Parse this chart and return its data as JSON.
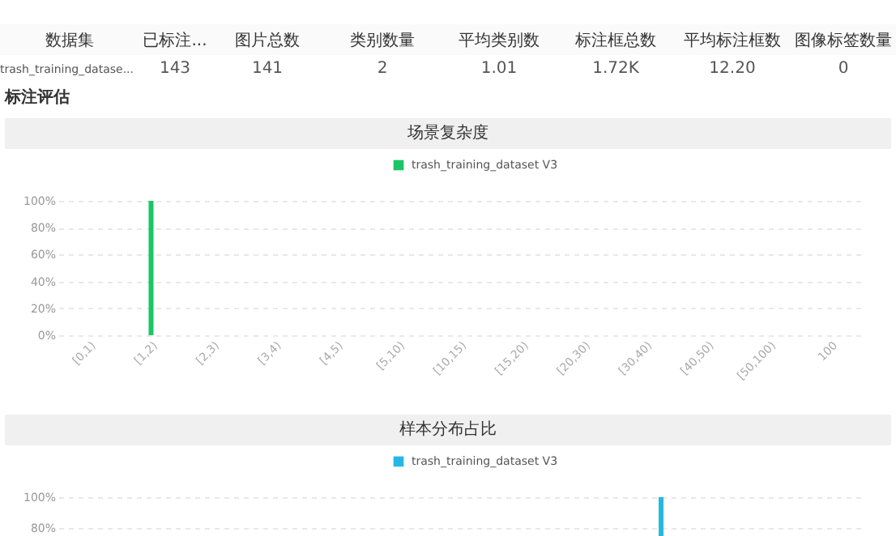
{
  "chart_data": [
    {
      "type": "other",
      "annotations": [
        "数据集",
        "已标注...",
        "图片总数",
        "类别数量",
        "平均类别数",
        "标注框总数",
        "平均标注框数",
        "图像标签数量",
        "trash_training_datase...",
        "143",
        "141",
        "2",
        "1.01",
        "1.72K",
        "12.20",
        "0",
        "标注评估"
      ]
    },
    {
      "type": "bar",
      "title": "场景复杂度",
      "categories": [
        "[0,1)",
        "[1,2)",
        "[2,3)",
        "[3,4)",
        "[4,5)",
        "[5,10)",
        "[10,15)",
        "[15,20)",
        "[20,30)",
        "[30,40)",
        "[40,50)",
        "[50,100)",
        "100"
      ],
      "series": [
        {
          "name": "trash_training_dataset V3",
          "color": "#1bc564",
          "values": [
            0,
            100,
            0,
            0,
            0,
            0,
            0,
            0,
            0,
            0,
            0,
            0,
            0
          ]
        }
      ],
      "ylim": [
        0,
        100
      ],
      "yticks": [
        {
          "value": 0,
          "label": "0%"
        },
        {
          "value": 20,
          "label": "20%"
        },
        {
          "value": 40,
          "label": "40%"
        },
        {
          "value": 60,
          "label": "60%"
        },
        {
          "value": 80,
          "label": "80%"
        },
        {
          "value": 100,
          "label": "100%"
        }
      ],
      "grid": "y",
      "legend": "top"
    },
    {
      "type": "bar",
      "title": "样本分布占比",
      "categories": [
        null,
        null
      ],
      "series": [
        {
          "name": "trash_training_dataset V3",
          "color": "#27b7e3",
          "values": [
            null,
            100
          ]
        }
      ],
      "ylim": [
        64,
        100
      ],
      "yticks": [
        {
          "value": 80,
          "label": "80%"
        },
        {
          "value": 100,
          "label": "100%"
        }
      ],
      "grid": "y",
      "legend": "top",
      "tick_labels": "y"
    }
  ]
}
